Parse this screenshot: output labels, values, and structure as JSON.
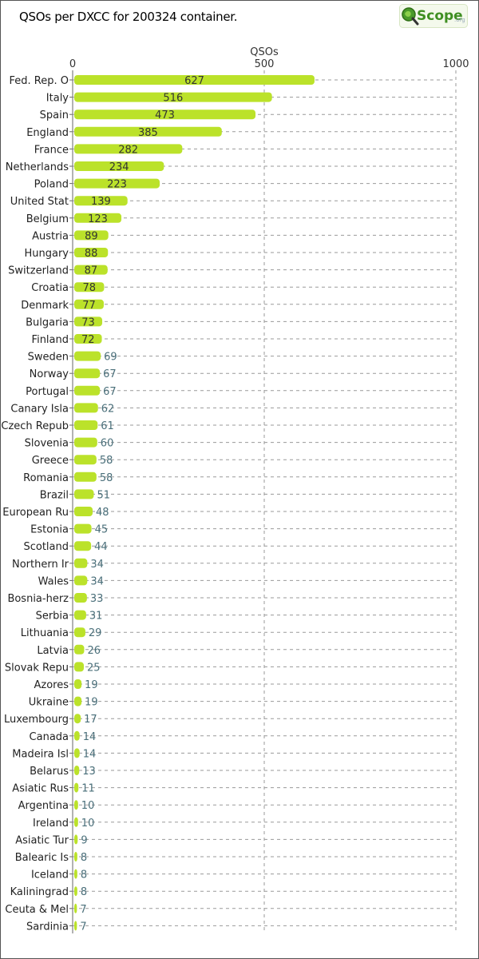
{
  "page": {
    "title": "QSOs per DXCC for 200324 container."
  },
  "logo": {
    "text": "Scope",
    "suffix": ".org"
  },
  "colors": {
    "bar": "#bbe22a",
    "label_in": "#333333",
    "label_out": "#4a6f7a",
    "grid": "#9a9a9a"
  },
  "chart_data": {
    "type": "bar",
    "orientation": "horizontal",
    "title": "QSOs per DXCC for 200324 container.",
    "xlabel": "QSOs",
    "xlim": [
      0,
      1000
    ],
    "xticks": [
      0,
      500,
      1000
    ],
    "grid": true,
    "categories": [
      "Fed. Rep. O",
      "Italy",
      "Spain",
      "England",
      "France",
      "Netherlands",
      "Poland",
      "United Stat",
      "Belgium",
      "Austria",
      "Hungary",
      "Switzerland",
      "Croatia",
      "Denmark",
      "Bulgaria",
      "Finland",
      "Sweden",
      "Norway",
      "Portugal",
      "Canary Isla",
      "Czech Repub",
      "Slovenia",
      "Greece",
      "Romania",
      "Brazil",
      "European Ru",
      "Estonia",
      "Scotland",
      "Northern Ir",
      "Wales",
      "Bosnia-herz",
      "Serbia",
      "Lithuania",
      "Latvia",
      "Slovak Repu",
      "Azores",
      "Ukraine",
      "Luxembourg",
      "Canada",
      "Madeira Isl",
      "Belarus",
      "Asiatic Rus",
      "Argentina",
      "Ireland",
      "Asiatic Tur",
      "Balearic Is",
      "Iceland",
      "Kaliningrad",
      "Ceuta & Mel",
      "Sardinia"
    ],
    "values": [
      627,
      516,
      473,
      385,
      282,
      234,
      223,
      139,
      123,
      89,
      88,
      87,
      78,
      77,
      73,
      72,
      69,
      67,
      67,
      62,
      61,
      60,
      58,
      58,
      51,
      48,
      45,
      44,
      34,
      34,
      33,
      31,
      29,
      26,
      25,
      19,
      19,
      17,
      14,
      14,
      13,
      11,
      10,
      10,
      9,
      8,
      8,
      8,
      7,
      7
    ]
  }
}
